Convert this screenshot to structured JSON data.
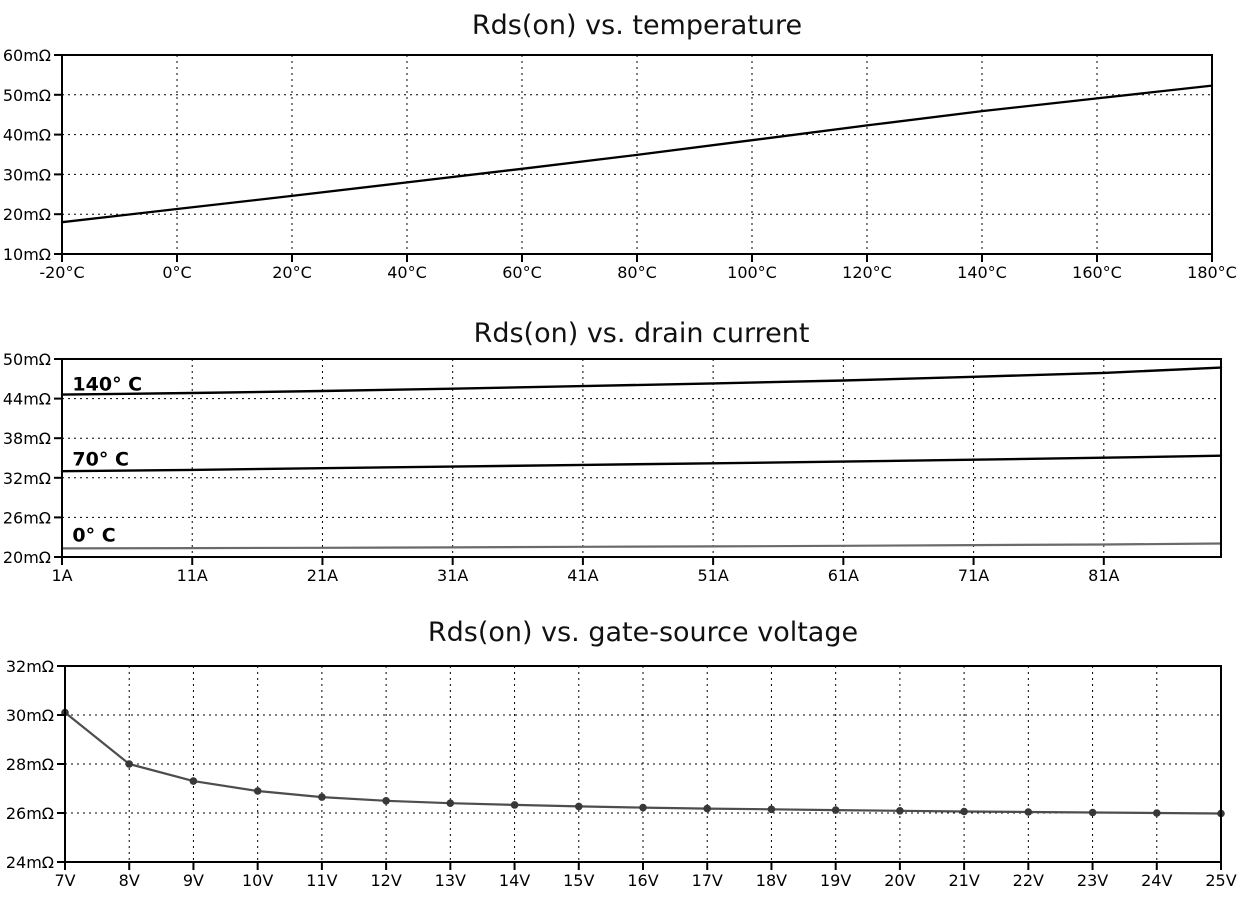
{
  "page": {
    "background": "#ffffff",
    "text_color": "#000000",
    "grid_color": "#000000"
  },
  "chart_data": [
    {
      "type": "line",
      "title": "Rds(on) vs. temperature",
      "xlabel": "",
      "ylabel": "",
      "xlim": [
        -20,
        180
      ],
      "ylim": [
        10,
        60
      ],
      "grid": true,
      "legend_position": "none",
      "x_tick_values": [
        -20,
        0,
        20,
        40,
        60,
        80,
        100,
        120,
        140,
        160,
        180
      ],
      "x_tick_labels": [
        "-20°C",
        "0°C",
        "20°C",
        "40°C",
        "60°C",
        "80°C",
        "100°C",
        "120°C",
        "140°C",
        "160°C",
        "180°C"
      ],
      "y_tick_values": [
        10,
        20,
        30,
        40,
        50,
        60
      ],
      "y_tick_labels": [
        "10mΩ",
        "20mΩ",
        "30mΩ",
        "40mΩ",
        "50mΩ",
        "60mΩ"
      ],
      "series": [
        {
          "label": "",
          "color": "#000000",
          "line_width": 2.3,
          "marker": null,
          "x": [
            -20,
            0,
            20,
            40,
            60,
            80,
            100,
            120,
            140,
            160,
            180
          ],
          "y": [
            18.0,
            21.3,
            24.6,
            28.0,
            31.4,
            34.9,
            38.6,
            42.3,
            45.9,
            49.1,
            52.3
          ]
        }
      ],
      "annotations": []
    },
    {
      "type": "line",
      "title": "Rds(on) vs. drain current",
      "xlabel": "",
      "ylabel": "",
      "xlim": [
        1,
        90
      ],
      "ylim": [
        20,
        50
      ],
      "grid": true,
      "legend_position": "inline-left",
      "x_tick_values": [
        1,
        11,
        21,
        31,
        41,
        51,
        61,
        71,
        81
      ],
      "x_tick_labels": [
        "1A",
        "11A",
        "21A",
        "31A",
        "41A",
        "51A",
        "61A",
        "71A",
        "81A"
      ],
      "y_tick_values": [
        20,
        26,
        32,
        38,
        44,
        50
      ],
      "y_tick_labels": [
        "20mΩ",
        "26mΩ",
        "32mΩ",
        "38mΩ",
        "44mΩ",
        "50mΩ"
      ],
      "series": [
        {
          "label": "140° C",
          "color": "#000000",
          "line_width": 2.4,
          "marker": null,
          "x": [
            1,
            11,
            21,
            31,
            41,
            51,
            61,
            71,
            81,
            90
          ],
          "y": [
            44.6,
            44.85,
            45.15,
            45.5,
            45.9,
            46.3,
            46.75,
            47.3,
            47.9,
            48.7
          ]
        },
        {
          "label": "70° C",
          "color": "#000000",
          "line_width": 2.4,
          "marker": null,
          "x": [
            1,
            11,
            21,
            31,
            41,
            51,
            61,
            71,
            81,
            90
          ],
          "y": [
            33.0,
            33.2,
            33.45,
            33.7,
            33.95,
            34.2,
            34.45,
            34.75,
            35.05,
            35.35
          ]
        },
        {
          "label": "0° C",
          "color": "#6a6a6a",
          "line_width": 2.2,
          "marker": null,
          "x": [
            1,
            11,
            21,
            31,
            41,
            51,
            61,
            71,
            81,
            90
          ],
          "y": [
            21.3,
            21.35,
            21.4,
            21.45,
            21.55,
            21.6,
            21.7,
            21.8,
            21.9,
            22.05
          ]
        }
      ],
      "annotations": [
        {
          "text": "140° C",
          "x": 1.8,
          "y": 46.3
        },
        {
          "text": "70° C",
          "x": 1.8,
          "y": 34.9
        },
        {
          "text": "0° C",
          "x": 1.8,
          "y": 23.4
        }
      ]
    },
    {
      "type": "line",
      "title": "Rds(on) vs. gate-source voltage",
      "xlabel": "",
      "ylabel": "",
      "xlim": [
        7,
        25
      ],
      "ylim": [
        24,
        32
      ],
      "grid": true,
      "legend_position": "none",
      "x_tick_values": [
        7,
        8,
        9,
        10,
        11,
        12,
        13,
        14,
        15,
        16,
        17,
        18,
        19,
        20,
        21,
        22,
        23,
        24,
        25
      ],
      "x_tick_labels": [
        "7V",
        "8V",
        "9V",
        "10V",
        "11V",
        "12V",
        "13V",
        "14V",
        "15V",
        "16V",
        "17V",
        "18V",
        "19V",
        "20V",
        "21V",
        "22V",
        "23V",
        "24V",
        "25V"
      ],
      "y_tick_values": [
        24,
        26,
        28,
        30,
        32
      ],
      "y_tick_labels": [
        "24mΩ",
        "26mΩ",
        "28mΩ",
        "30mΩ",
        "32mΩ"
      ],
      "series": [
        {
          "label": "",
          "color": "#4d4d4d",
          "line_width": 2.2,
          "marker": {
            "radius": 3.8,
            "color": "#383838"
          },
          "x": [
            7,
            8,
            9,
            10,
            11,
            12,
            13,
            14,
            15,
            16,
            17,
            18,
            19,
            20,
            21,
            22,
            23,
            24,
            25
          ],
          "y": [
            30.1,
            28.0,
            27.3,
            26.9,
            26.65,
            26.5,
            26.4,
            26.33,
            26.27,
            26.22,
            26.18,
            26.15,
            26.12,
            26.09,
            26.06,
            26.04,
            26.02,
            26.0,
            25.98
          ]
        }
      ],
      "annotations": []
    }
  ]
}
